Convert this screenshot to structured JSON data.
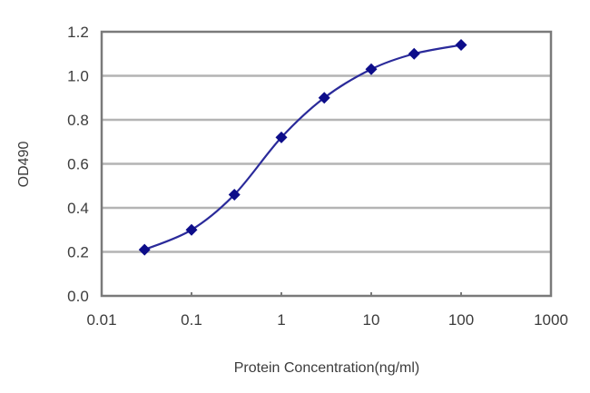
{
  "chart_data": {
    "type": "line",
    "title": "",
    "xlabel": "Protein Concentration(ng/ml)",
    "ylabel": "OD490",
    "xscale": "log",
    "xlim": [
      0.01,
      1000
    ],
    "ylim": [
      0.0,
      1.2
    ],
    "x_ticks": [
      "0.01",
      "0.1",
      "1",
      "10",
      "100",
      "1000"
    ],
    "y_ticks": [
      "0.0",
      "0.2",
      "0.4",
      "0.6",
      "0.8",
      "1.0",
      "1.2"
    ],
    "grid": {
      "horizontal": true,
      "vertical": false
    },
    "legend": null,
    "series": [
      {
        "name": "OD490",
        "color": "#1a1a8c",
        "marker": "diamond",
        "x": [
          0.03,
          0.1,
          0.3,
          1,
          3,
          10,
          30,
          100
        ],
        "y": [
          0.21,
          0.3,
          0.46,
          0.72,
          0.9,
          1.03,
          1.1,
          1.14
        ]
      }
    ]
  },
  "colors": {
    "line": "#2a2a9a",
    "marker": "#0d0d8a",
    "gridline": "#b4b4b4",
    "frame": "#7a7a7a",
    "text": "#3c3c3c"
  }
}
